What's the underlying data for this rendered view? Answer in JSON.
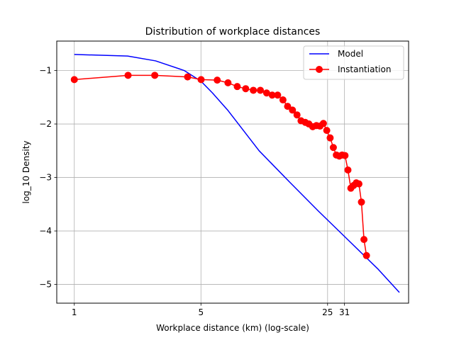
{
  "chart_data": {
    "type": "line",
    "title": "Distribution of workplace distances",
    "xlabel": "Workplace distance (km) (log-scale)",
    "ylabel": "log_10 Density",
    "x_scale": "log",
    "xlim": [
      0.8,
      70
    ],
    "ylim": [
      -5.35,
      -0.45
    ],
    "x_ticks": [
      {
        "value": 1,
        "label": "1"
      },
      {
        "value": 5,
        "label": "5"
      },
      {
        "value": 25,
        "label": "25"
      },
      {
        "value": 31,
        "label": "31"
      }
    ],
    "y_ticks": [
      {
        "value": -1,
        "label": "−1"
      },
      {
        "value": -2,
        "label": "−2"
      },
      {
        "value": -3,
        "label": "−3"
      },
      {
        "value": -4,
        "label": "−4"
      },
      {
        "value": -5,
        "label": "−5"
      }
    ],
    "grid": true,
    "legend_position": "upper right",
    "series": [
      {
        "name": "Model",
        "color": "#0000ff",
        "marker": "none",
        "points": [
          [
            1.0,
            -0.7
          ],
          [
            1.97,
            -0.73
          ],
          [
            2.81,
            -0.82
          ],
          [
            4.04,
            -1.0
          ],
          [
            5.0,
            -1.2
          ],
          [
            5.79,
            -1.42
          ],
          [
            7.06,
            -1.75
          ],
          [
            10.47,
            -2.5
          ],
          [
            15.27,
            -3.07
          ],
          [
            22.27,
            -3.63
          ],
          [
            32.48,
            -4.17
          ],
          [
            47.37,
            -4.71
          ],
          [
            62.27,
            -5.15
          ]
        ]
      },
      {
        "name": "Instantiation",
        "color": "#ff0000",
        "marker": "circle",
        "points": [
          [
            1.0,
            -1.17
          ],
          [
            1.98,
            -1.09
          ],
          [
            2.78,
            -1.09
          ],
          [
            4.22,
            -1.12
          ],
          [
            5.01,
            -1.17
          ],
          [
            6.15,
            -1.18
          ],
          [
            7.05,
            -1.23
          ],
          [
            7.93,
            -1.3
          ],
          [
            8.83,
            -1.34
          ],
          [
            9.73,
            -1.37
          ],
          [
            10.64,
            -1.37
          ],
          [
            11.52,
            -1.42
          ],
          [
            12.37,
            -1.46
          ],
          [
            13.25,
            -1.46
          ],
          [
            14.18,
            -1.55
          ],
          [
            15.04,
            -1.67
          ],
          [
            16.0,
            -1.74
          ],
          [
            16.95,
            -1.83
          ],
          [
            17.84,
            -1.94
          ],
          [
            18.83,
            -1.97
          ],
          [
            19.71,
            -2.0
          ],
          [
            20.7,
            -2.05
          ],
          [
            21.69,
            -2.03
          ],
          [
            22.7,
            -2.04
          ],
          [
            23.7,
            -1.99
          ],
          [
            24.74,
            -2.12
          ],
          [
            25.83,
            -2.26
          ],
          [
            26.9,
            -2.44
          ],
          [
            27.95,
            -2.58
          ],
          [
            29.02,
            -2.6
          ],
          [
            30.08,
            -2.58
          ],
          [
            31.2,
            -2.59
          ],
          [
            32.38,
            -2.86
          ],
          [
            33.59,
            -3.2
          ],
          [
            34.79,
            -3.15
          ],
          [
            36.01,
            -3.1
          ],
          [
            37.23,
            -3.12
          ],
          [
            38.44,
            -3.46
          ],
          [
            39.7,
            -4.16
          ],
          [
            40.98,
            -4.46
          ]
        ]
      }
    ]
  }
}
